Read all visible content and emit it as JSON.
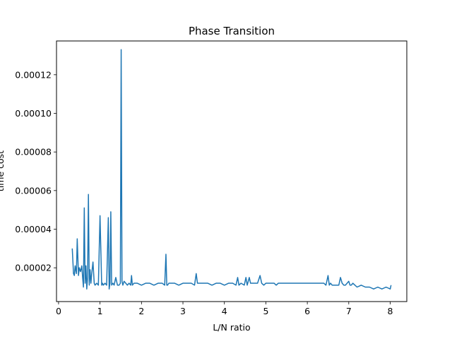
{
  "chart_data": {
    "type": "line",
    "title": "Phase Transition",
    "xlabel": "L/N ratio",
    "ylabel": "time cost",
    "xlim": [
      -0.05,
      8.4
    ],
    "ylim": [
      2.5e-06,
      0.0001375
    ],
    "xticks": [
      0,
      1,
      2,
      3,
      4,
      5,
      6,
      7,
      8
    ],
    "xtick_labels": [
      "0",
      "1",
      "2",
      "3",
      "4",
      "5",
      "6",
      "7",
      "8"
    ],
    "yticks": [
      2e-05,
      4e-05,
      6e-05,
      8e-05,
      0.0001,
      0.00012
    ],
    "ytick_labels": [
      "0.00002",
      "0.00004",
      "0.00006",
      "0.00008",
      "0.00010",
      "0.00012"
    ],
    "grid": false,
    "legend": "none",
    "color": "#1f77b4",
    "series": [
      {
        "x": [
          0.33,
          0.36,
          0.38,
          0.4,
          0.43,
          0.45,
          0.48,
          0.5,
          0.53,
          0.56,
          0.58,
          0.6,
          0.62,
          0.64,
          0.66,
          0.68,
          0.7,
          0.72,
          0.74,
          0.76,
          0.78,
          0.8,
          0.83,
          0.86,
          0.88,
          0.92,
          0.96,
          1.0,
          1.04,
          1.06,
          1.08,
          1.12,
          1.16,
          1.2,
          1.22,
          1.24,
          1.26,
          1.28,
          1.31,
          1.34,
          1.38,
          1.42,
          1.46,
          1.49,
          1.51,
          1.53,
          1.55,
          1.58,
          1.62,
          1.66,
          1.7,
          1.74,
          1.76,
          1.78,
          1.82,
          1.9,
          2.0,
          2.1,
          2.2,
          2.3,
          2.4,
          2.5,
          2.56,
          2.59,
          2.61,
          2.63,
          2.66,
          2.72,
          2.8,
          2.9,
          3.0,
          3.1,
          3.2,
          3.28,
          3.32,
          3.35,
          3.4,
          3.5,
          3.6,
          3.7,
          3.8,
          3.9,
          4.0,
          4.1,
          4.2,
          4.28,
          4.32,
          4.35,
          4.4,
          4.48,
          4.52,
          4.55,
          4.6,
          4.63,
          4.7,
          4.8,
          4.86,
          4.9,
          4.95,
          5.0,
          5.1,
          5.2,
          5.25,
          5.3,
          5.4,
          5.5,
          5.6,
          5.7,
          5.8,
          5.9,
          6.0,
          6.1,
          6.2,
          6.3,
          6.4,
          6.45,
          6.5,
          6.53,
          6.56,
          6.6,
          6.7,
          6.76,
          6.8,
          6.84,
          6.88,
          6.92,
          6.96,
          7.0,
          7.03,
          7.06,
          7.1,
          7.15,
          7.2,
          7.3,
          7.4,
          7.5,
          7.6,
          7.7,
          7.8,
          7.9,
          8.0,
          8.02
        ],
        "y": [
          3e-05,
          1.7e-05,
          1.6e-05,
          2.1e-05,
          1.7e-05,
          3.5e-05,
          1.6e-05,
          2e-05,
          1.8e-05,
          2.1e-05,
          1.5e-05,
          1e-05,
          5.1e-05,
          1.2e-05,
          2.1e-05,
          9e-06,
          1.5e-05,
          5.8e-05,
          1.1e-05,
          1.9e-05,
          1.2e-05,
          1.7e-05,
          2.3e-05,
          1.2e-05,
          1.1e-05,
          1.2e-05,
          1.1e-05,
          4.7e-05,
          1.1e-05,
          1.2e-05,
          1.1e-05,
          1.2e-05,
          1.1e-05,
          4.6e-05,
          9e-06,
          1.2e-05,
          4.9e-05,
          1.1e-05,
          1.2e-05,
          1.1e-05,
          1.5e-05,
          1.1e-05,
          1.1e-05,
          1.2e-05,
          0.000133,
          1.3e-05,
          1.1e-05,
          1.3e-05,
          1.2e-05,
          1.1e-05,
          1.2e-05,
          1.1e-05,
          1.6e-05,
          1.1e-05,
          1.2e-05,
          1.2e-05,
          1.1e-05,
          1.2e-05,
          1.2e-05,
          1.1e-05,
          1.2e-05,
          1.2e-05,
          1.1e-05,
          2.7e-05,
          1.1e-05,
          1.1e-05,
          1.2e-05,
          1.2e-05,
          1.2e-05,
          1.1e-05,
          1.2e-05,
          1.2e-05,
          1.2e-05,
          1.1e-05,
          1.7e-05,
          1.2e-05,
          1.2e-05,
          1.2e-05,
          1.2e-05,
          1.1e-05,
          1.2e-05,
          1.2e-05,
          1.1e-05,
          1.2e-05,
          1.2e-05,
          1.1e-05,
          1.5e-05,
          1.1e-05,
          1.2e-05,
          1.1e-05,
          1.5e-05,
          1.1e-05,
          1.5e-05,
          1.2e-05,
          1.2e-05,
          1.2e-05,
          1.6e-05,
          1.2e-05,
          1.1e-05,
          1.2e-05,
          1.2e-05,
          1.2e-05,
          1.1e-05,
          1.2e-05,
          1.2e-05,
          1.2e-05,
          1.2e-05,
          1.2e-05,
          1.2e-05,
          1.2e-05,
          1.2e-05,
          1.2e-05,
          1.2e-05,
          1.2e-05,
          1.2e-05,
          1.1e-05,
          1.6e-05,
          1.1e-05,
          1.2e-05,
          1.1e-05,
          1.1e-05,
          1.1e-05,
          1.5e-05,
          1.2e-05,
          1.1e-05,
          1.1e-05,
          1.2e-05,
          1.3e-05,
          1.1e-05,
          1.1e-05,
          1.2e-05,
          1.1e-05,
          1e-05,
          1.1e-05,
          1e-05,
          1e-05,
          9e-06,
          1e-05,
          9e-06,
          1e-05,
          9e-06,
          1.1e-05
        ]
      }
    ]
  }
}
